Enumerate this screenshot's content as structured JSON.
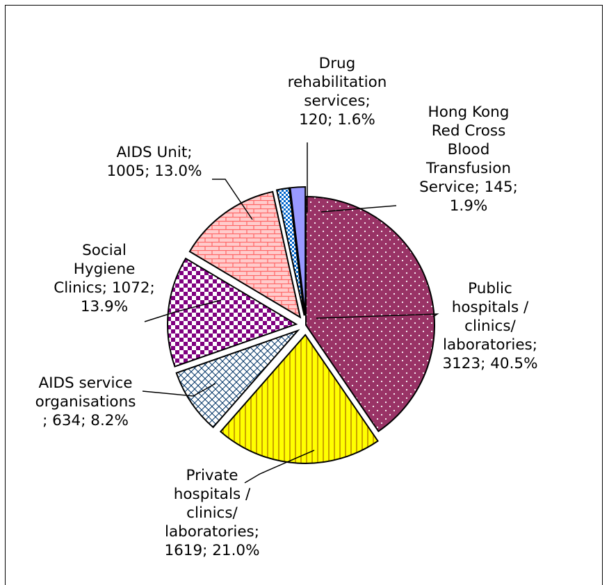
{
  "chart_data": {
    "type": "pie",
    "title": "",
    "legend": "none",
    "slices": [
      {
        "label": "Public hospitals / clinics/ laboratories",
        "value": 3123,
        "percent": "40.5%",
        "label_lines": [
          "Public",
          "hospitals /",
          "clinics/",
          "laboratories;",
          "3123; 40.5%"
        ],
        "color": "#993366",
        "pattern": "dots",
        "exploded": false
      },
      {
        "label": "Private hospitals / clinics/ laboratories",
        "value": 1619,
        "percent": "21.0%",
        "label_lines": [
          "Private",
          "hospitals /",
          "clinics/",
          "laboratories;",
          "1619; 21.0%"
        ],
        "color": "#ffff00",
        "pattern": "vertical-stripes",
        "exploded": true
      },
      {
        "label": "AIDS service organisations",
        "value": 634,
        "percent": "8.2%",
        "label_lines": [
          "AIDS service",
          "organisations",
          "; 634; 8.2%"
        ],
        "color": "#ffffff",
        "pattern": "diagonal-cross",
        "exploded": true
      },
      {
        "label": "Social Hygiene Clinics",
        "value": 1072,
        "percent": "13.9%",
        "label_lines": [
          "Social",
          "Hygiene",
          "Clinics; 1072;",
          "13.9%"
        ],
        "color": "#800080",
        "pattern": "checker",
        "exploded": true
      },
      {
        "label": "AIDS Unit",
        "value": 1005,
        "percent": "13.0%",
        "label_lines": [
          "AIDS Unit;",
          "1005; 13.0%"
        ],
        "color": "#ffcccc",
        "pattern": "brick",
        "exploded": true
      },
      {
        "label": "Drug rehabilitation services",
        "value": 120,
        "percent": "1.6%",
        "label_lines": [
          "Drug",
          "rehabilitation",
          "services;",
          "120; 1.6%"
        ],
        "color": "#0066cc",
        "pattern": "checker-small",
        "exploded": true
      },
      {
        "label": "Hong Kong Red Cross Blood Transfusion Service",
        "value": 145,
        "percent": "1.9%",
        "label_lines": [
          "Hong Kong",
          "Red Cross",
          "Blood",
          "Transfusion",
          "Service; 145;",
          "1.9%"
        ],
        "color": "#9999ff",
        "pattern": "solid",
        "exploded": true
      }
    ]
  }
}
